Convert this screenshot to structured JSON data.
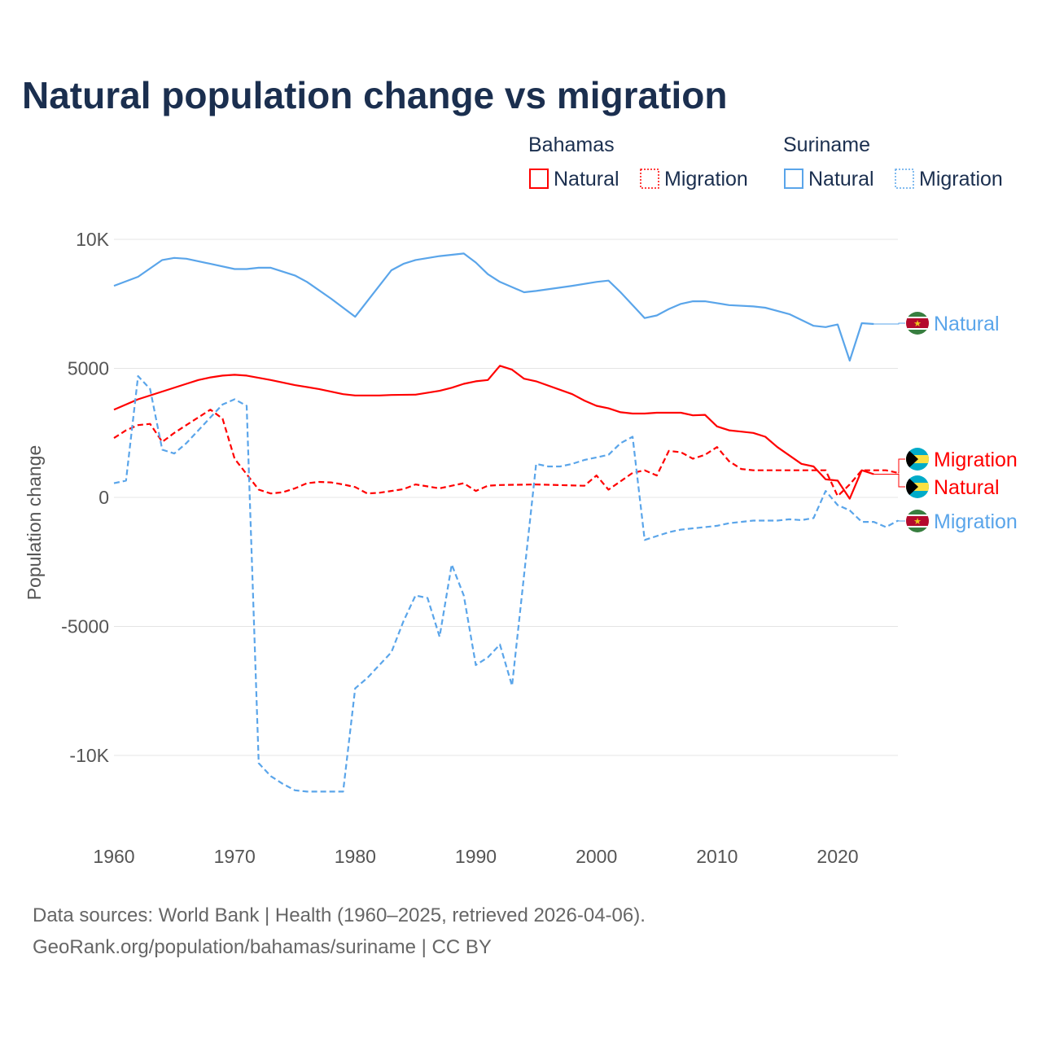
{
  "title": "Natural population change vs migration",
  "legend": {
    "groups": [
      {
        "name": "Bahamas",
        "color": "#ff0000",
        "items": [
          "Natural",
          "Migration"
        ]
      },
      {
        "name": "Suriname",
        "color": "#5aa5ea",
        "items": [
          "Natural",
          "Migration"
        ]
      }
    ]
  },
  "source": {
    "line1": "Data sources: World Bank | Health (1960–2025, retrieved 2026-04-06).",
    "line2": "GeoRank.org/population/bahamas/suriname | CC BY"
  },
  "chart_data": {
    "type": "line",
    "title": "Natural population change vs migration",
    "xlabel": "",
    "ylabel": "Population change",
    "xlim": [
      1960,
      2025
    ],
    "ylim": [
      -12500,
      10000
    ],
    "yticks": [
      {
        "v": 10000,
        "label": "10K"
      },
      {
        "v": 5000,
        "label": "5000"
      },
      {
        "v": 0,
        "label": "0"
      },
      {
        "v": -5000,
        "label": "-5000"
      },
      {
        "v": -10000,
        "label": "-10K"
      }
    ],
    "xticks": [
      1960,
      1970,
      1980,
      1990,
      2000,
      2010,
      2020
    ],
    "grid": true,
    "series": [
      {
        "name": "Suriname Natural",
        "country": "Suriname",
        "end_label": "Natural",
        "color": "#5aa5ea",
        "dashed": false,
        "points": [
          [
            1960,
            8200
          ],
          [
            1962,
            8550
          ],
          [
            1964,
            9200
          ],
          [
            1965,
            9280
          ],
          [
            1966,
            9250
          ],
          [
            1968,
            9050
          ],
          [
            1970,
            8850
          ],
          [
            1971,
            8850
          ],
          [
            1972,
            8900
          ],
          [
            1973,
            8900
          ],
          [
            1975,
            8600
          ],
          [
            1976,
            8350
          ],
          [
            1978,
            7700
          ],
          [
            1980,
            7000
          ],
          [
            1981,
            7600
          ],
          [
            1983,
            8800
          ],
          [
            1984,
            9050
          ],
          [
            1985,
            9200
          ],
          [
            1987,
            9350
          ],
          [
            1988,
            9400
          ],
          [
            1989,
            9450
          ],
          [
            1990,
            9100
          ],
          [
            1991,
            8650
          ],
          [
            1992,
            8350
          ],
          [
            1994,
            7950
          ],
          [
            1995,
            8000
          ],
          [
            1998,
            8200
          ],
          [
            2000,
            8350
          ],
          [
            2001,
            8400
          ],
          [
            2002,
            7950
          ],
          [
            2004,
            6950
          ],
          [
            2005,
            7050
          ],
          [
            2006,
            7300
          ],
          [
            2007,
            7500
          ],
          [
            2008,
            7600
          ],
          [
            2009,
            7600
          ],
          [
            2011,
            7450
          ],
          [
            2013,
            7400
          ],
          [
            2014,
            7350
          ],
          [
            2016,
            7100
          ],
          [
            2018,
            6650
          ],
          [
            2019,
            6600
          ],
          [
            2020,
            6700
          ],
          [
            2021,
            5300
          ],
          [
            2022,
            6750
          ],
          [
            2023,
            6720
          ]
        ]
      },
      {
        "name": "Bahamas Natural",
        "country": "Bahamas",
        "end_label": "Natural",
        "color": "#ff0000",
        "dashed": false,
        "points": [
          [
            1960,
            3400
          ],
          [
            1962,
            3800
          ],
          [
            1964,
            4100
          ],
          [
            1966,
            4400
          ],
          [
            1967,
            4550
          ],
          [
            1968,
            4650
          ],
          [
            1969,
            4720
          ],
          [
            1970,
            4750
          ],
          [
            1971,
            4720
          ],
          [
            1973,
            4550
          ],
          [
            1975,
            4350
          ],
          [
            1977,
            4200
          ],
          [
            1979,
            4000
          ],
          [
            1980,
            3950
          ],
          [
            1982,
            3950
          ],
          [
            1983,
            3970
          ],
          [
            1985,
            3980
          ],
          [
            1987,
            4130
          ],
          [
            1988,
            4250
          ],
          [
            1989,
            4400
          ],
          [
            1990,
            4500
          ],
          [
            1991,
            4550
          ],
          [
            1992,
            5100
          ],
          [
            1993,
            4950
          ],
          [
            1994,
            4600
          ],
          [
            1995,
            4500
          ],
          [
            1998,
            4000
          ],
          [
            1999,
            3750
          ],
          [
            2000,
            3550
          ],
          [
            2001,
            3450
          ],
          [
            2002,
            3300
          ],
          [
            2003,
            3250
          ],
          [
            2004,
            3250
          ],
          [
            2005,
            3280
          ],
          [
            2007,
            3280
          ],
          [
            2008,
            3180
          ],
          [
            2009,
            3200
          ],
          [
            2010,
            2750
          ],
          [
            2011,
            2600
          ],
          [
            2012,
            2550
          ],
          [
            2013,
            2500
          ],
          [
            2014,
            2350
          ],
          [
            2015,
            1950
          ],
          [
            2017,
            1300
          ],
          [
            2018,
            1200
          ],
          [
            2019,
            700
          ],
          [
            2020,
            650
          ],
          [
            2021,
            -50
          ],
          [
            2022,
            1050
          ],
          [
            2023,
            900
          ]
        ]
      },
      {
        "name": "Bahamas Migration",
        "country": "Bahamas",
        "end_label": "Migration",
        "color": "#ff0000",
        "dashed": true,
        "points": [
          [
            1960,
            2300
          ],
          [
            1961,
            2600
          ],
          [
            1962,
            2800
          ],
          [
            1963,
            2850
          ],
          [
            1964,
            2150
          ],
          [
            1965,
            2500
          ],
          [
            1966,
            2800
          ],
          [
            1967,
            3100
          ],
          [
            1968,
            3400
          ],
          [
            1969,
            3050
          ],
          [
            1970,
            1500
          ],
          [
            1971,
            900
          ],
          [
            1972,
            300
          ],
          [
            1973,
            150
          ],
          [
            1974,
            200
          ],
          [
            1975,
            350
          ],
          [
            1976,
            550
          ],
          [
            1977,
            600
          ],
          [
            1978,
            580
          ],
          [
            1979,
            500
          ],
          [
            1980,
            400
          ],
          [
            1981,
            150
          ],
          [
            1982,
            180
          ],
          [
            1983,
            250
          ],
          [
            1984,
            320
          ],
          [
            1985,
            500
          ],
          [
            1987,
            350
          ],
          [
            1988,
            450
          ],
          [
            1989,
            550
          ],
          [
            1990,
            250
          ],
          [
            1991,
            450
          ],
          [
            1992,
            480
          ],
          [
            1995,
            500
          ],
          [
            1999,
            450
          ],
          [
            2000,
            850
          ],
          [
            2001,
            300
          ],
          [
            2003,
            950
          ],
          [
            2004,
            1050
          ],
          [
            2005,
            850
          ],
          [
            2006,
            1800
          ],
          [
            2007,
            1750
          ],
          [
            2008,
            1500
          ],
          [
            2009,
            1650
          ],
          [
            2010,
            1950
          ],
          [
            2011,
            1400
          ],
          [
            2012,
            1100
          ],
          [
            2013,
            1050
          ],
          [
            2019,
            1050
          ],
          [
            2020,
            50
          ],
          [
            2021,
            500
          ],
          [
            2022,
            1050
          ],
          [
            2024,
            1050
          ],
          [
            2025,
            950
          ]
        ]
      },
      {
        "name": "Suriname Migration",
        "country": "Suriname",
        "end_label": "Migration",
        "color": "#5aa5ea",
        "dashed": true,
        "points": [
          [
            1960,
            550
          ],
          [
            1961,
            650
          ],
          [
            1962,
            4700
          ],
          [
            1963,
            4200
          ],
          [
            1964,
            1850
          ],
          [
            1965,
            1700
          ],
          [
            1966,
            2100
          ],
          [
            1967,
            2600
          ],
          [
            1968,
            3100
          ],
          [
            1969,
            3600
          ],
          [
            1970,
            3800
          ],
          [
            1971,
            3550
          ],
          [
            1972,
            -10300
          ],
          [
            1973,
            -10800
          ],
          [
            1974,
            -11100
          ],
          [
            1975,
            -11350
          ],
          [
            1976,
            -11400
          ],
          [
            1979,
            -11400
          ],
          [
            1980,
            -7400
          ],
          [
            1981,
            -7000
          ],
          [
            1982,
            -6500
          ],
          [
            1983,
            -6000
          ],
          [
            1984,
            -4800
          ],
          [
            1985,
            -3800
          ],
          [
            1986,
            -3900
          ],
          [
            1987,
            -5400
          ],
          [
            1988,
            -2600
          ],
          [
            1989,
            -3800
          ],
          [
            1990,
            -6500
          ],
          [
            1991,
            -6200
          ],
          [
            1992,
            -5700
          ],
          [
            1993,
            -7300
          ],
          [
            1994,
            -3000
          ],
          [
            1995,
            1300
          ],
          [
            1996,
            1200
          ],
          [
            1997,
            1200
          ],
          [
            1998,
            1300
          ],
          [
            1999,
            1450
          ],
          [
            2000,
            1550
          ],
          [
            2001,
            1650
          ],
          [
            2002,
            2100
          ],
          [
            2003,
            2350
          ],
          [
            2004,
            -1650
          ],
          [
            2005,
            -1500
          ],
          [
            2006,
            -1350
          ],
          [
            2007,
            -1250
          ],
          [
            2008,
            -1200
          ],
          [
            2009,
            -1150
          ],
          [
            2010,
            -1100
          ],
          [
            2011,
            -1000
          ],
          [
            2012,
            -950
          ],
          [
            2013,
            -900
          ],
          [
            2015,
            -900
          ],
          [
            2016,
            -850
          ],
          [
            2017,
            -880
          ],
          [
            2018,
            -800
          ],
          [
            2019,
            250
          ],
          [
            2020,
            -300
          ],
          [
            2021,
            -500
          ],
          [
            2022,
            -950
          ],
          [
            2023,
            -950
          ],
          [
            2024,
            -1150
          ],
          [
            2025,
            -900
          ]
        ]
      }
    ]
  }
}
